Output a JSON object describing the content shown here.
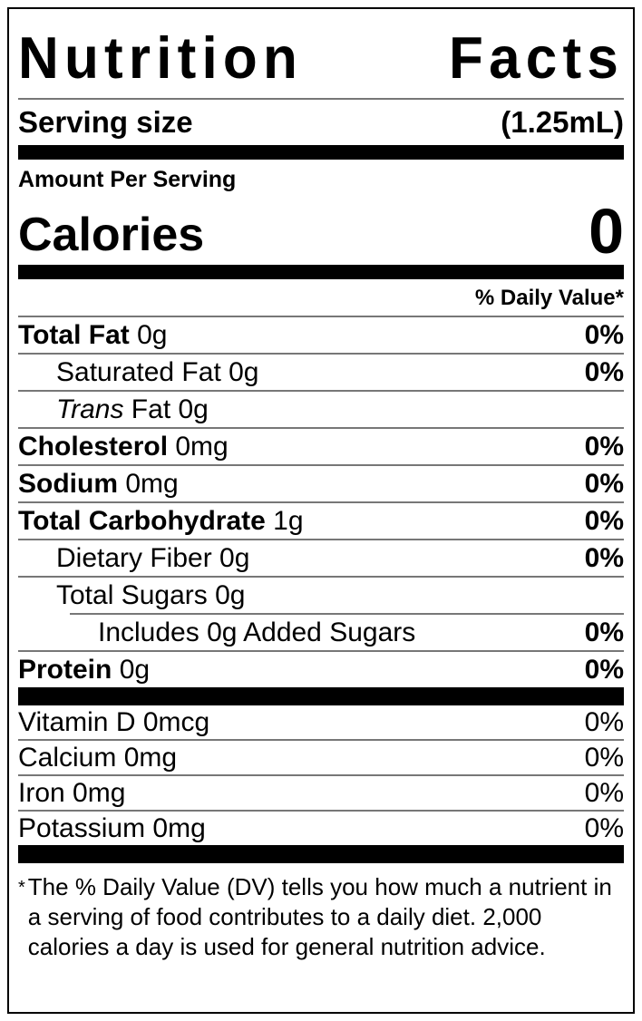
{
  "title": {
    "text": "Nutrition Facts",
    "word1": "Nutrition",
    "word2": "Facts"
  },
  "serving": {
    "label": "Serving size",
    "value": "(1.25mL)"
  },
  "calories": {
    "heading": "Amount Per Serving",
    "label": "Calories",
    "value": "0"
  },
  "daily_value_header": "% Daily Value*",
  "rows": [
    {
      "strong": "Total Fat",
      "plain": " 0g",
      "dv": "0%"
    },
    {
      "plain": "Saturated Fat 0g",
      "dv": "0%"
    },
    {
      "italic": "Trans",
      "plain": " Fat 0g",
      "dv": ""
    },
    {
      "strong": "Cholesterol",
      "plain": " 0mg",
      "dv": "0%"
    },
    {
      "strong": "Sodium",
      "plain": " 0mg",
      "dv": "0%"
    },
    {
      "strong": "Total Carbohydrate",
      "plain": " 1g",
      "dv": "0%"
    },
    {
      "plain": "Dietary Fiber 0g",
      "dv": "0%"
    },
    {
      "plain": "Total Sugars 0g",
      "dv": ""
    },
    {
      "plain": "Includes 0g Added Sugars",
      "dv": "0%"
    },
    {
      "strong": "Protein",
      "plain": " 0g",
      "dv": "0%"
    }
  ],
  "vitamins": [
    {
      "plain": "Vitamin D 0mcg",
      "dv": "0%"
    },
    {
      "plain": "Calcium 0mg",
      "dv": "0%"
    },
    {
      "plain": "Iron 0mg",
      "dv": "0%"
    },
    {
      "plain": "Potassium 0mg",
      "dv": "0%"
    }
  ],
  "footnote": {
    "marker": "*",
    "text": "The % Daily Value (DV) tells you how much a nutrient in a serving of food contributes to a daily diet. 2,000 calories a day is used for general nutrition advice."
  },
  "colors": {
    "text": "#000000",
    "background": "#ffffff",
    "divider": "#777777"
  }
}
